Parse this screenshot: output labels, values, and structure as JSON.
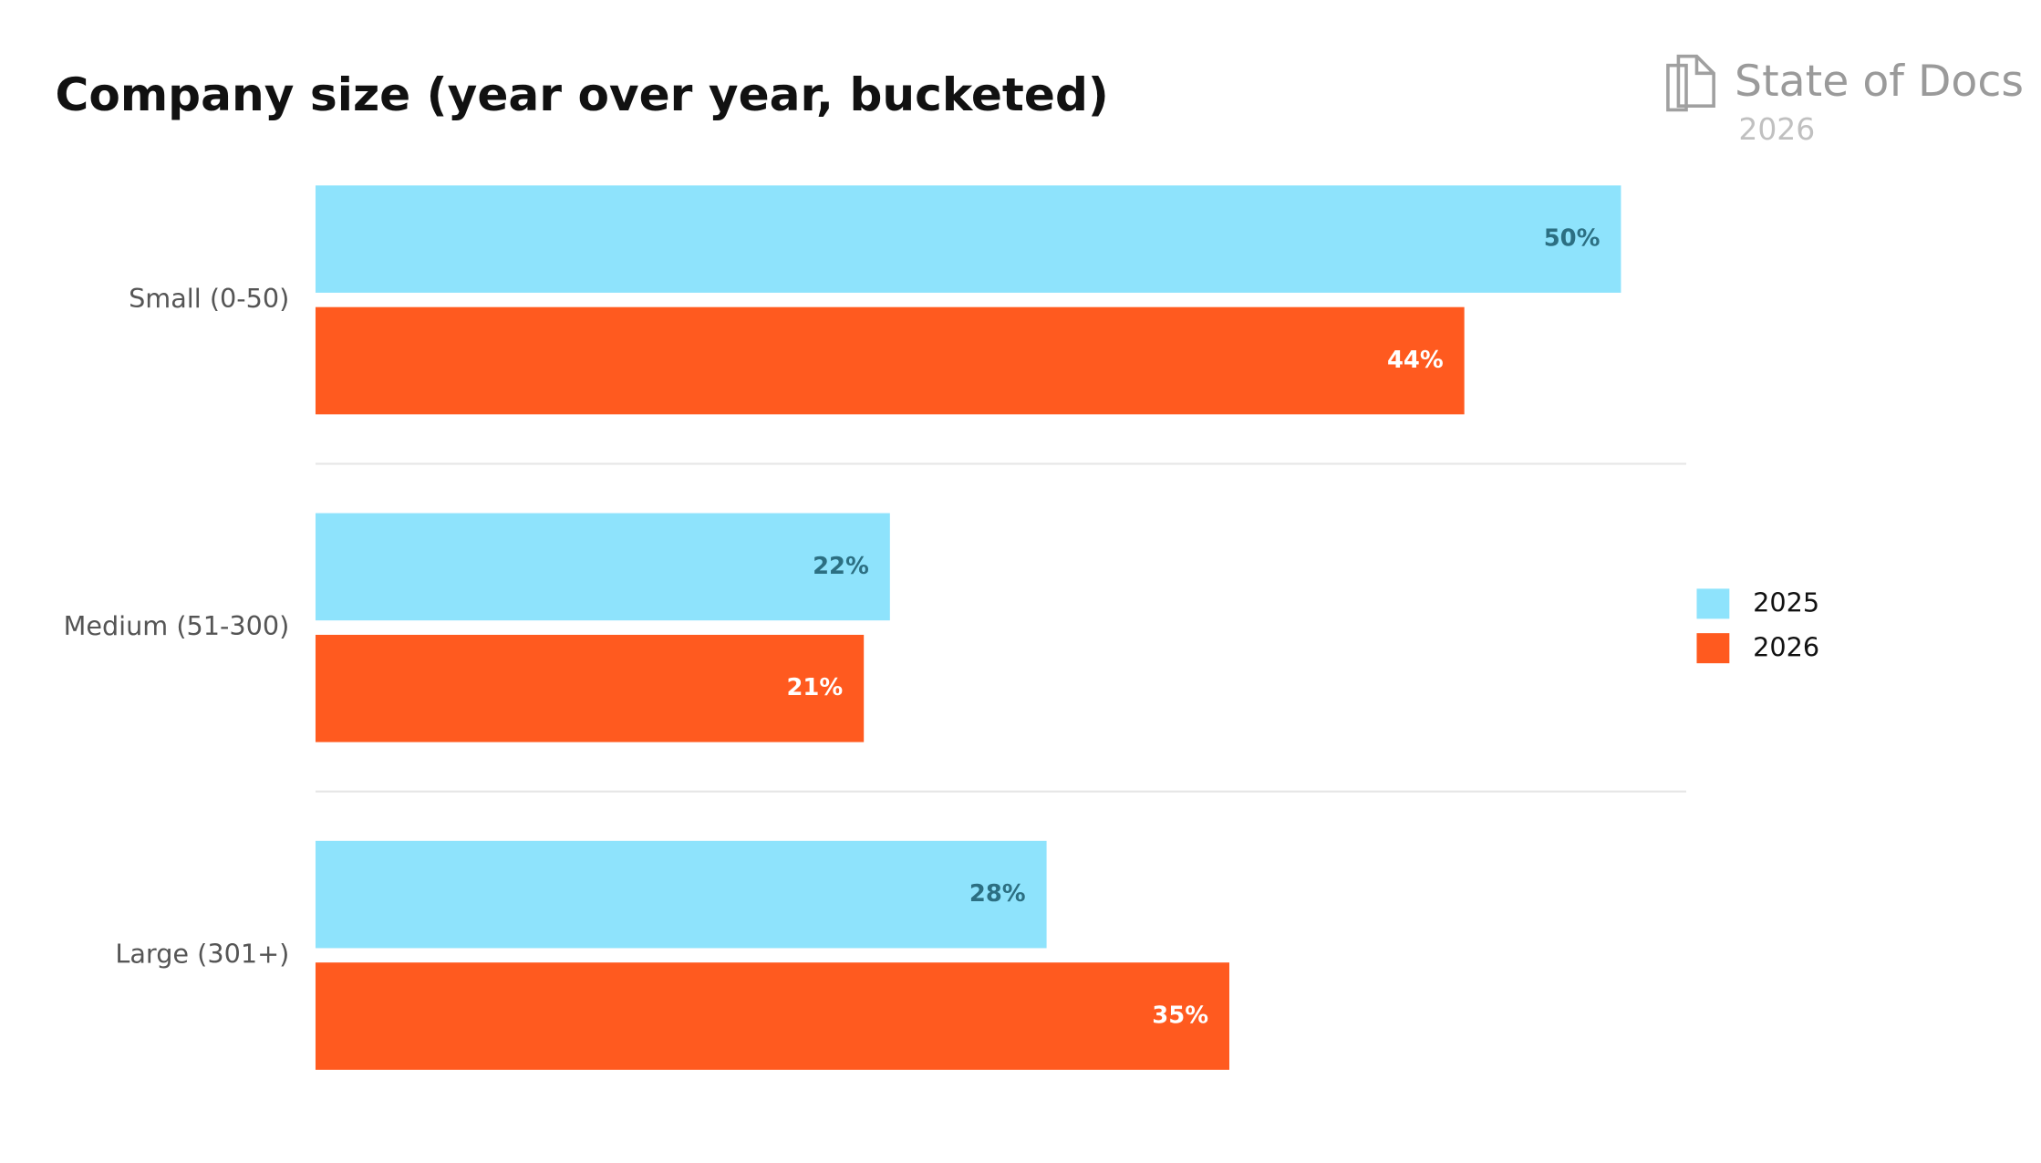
{
  "chart_data": {
    "type": "hbar",
    "title": "Company size (year over year, bucketed)",
    "categories": [
      "Small (0-50)",
      "Medium (51-300)",
      "Large (301+)"
    ],
    "series": [
      {
        "name": "2025",
        "color": "#8ee3fc",
        "label_color": "#2c6f82",
        "values": [
          50,
          22,
          28
        ],
        "value_labels": [
          "50%",
          "22%",
          "28%"
        ]
      },
      {
        "name": "2026",
        "color": "#ff5a1f",
        "label_color": "#ffffff",
        "values": [
          44,
          21,
          35
        ],
        "value_labels": [
          "44%",
          "21%",
          "35%"
        ]
      }
    ],
    "xlim": [
      0,
      52.5
    ],
    "legend": "right"
  },
  "logo": {
    "name": "State of Docs",
    "year": "2026"
  }
}
